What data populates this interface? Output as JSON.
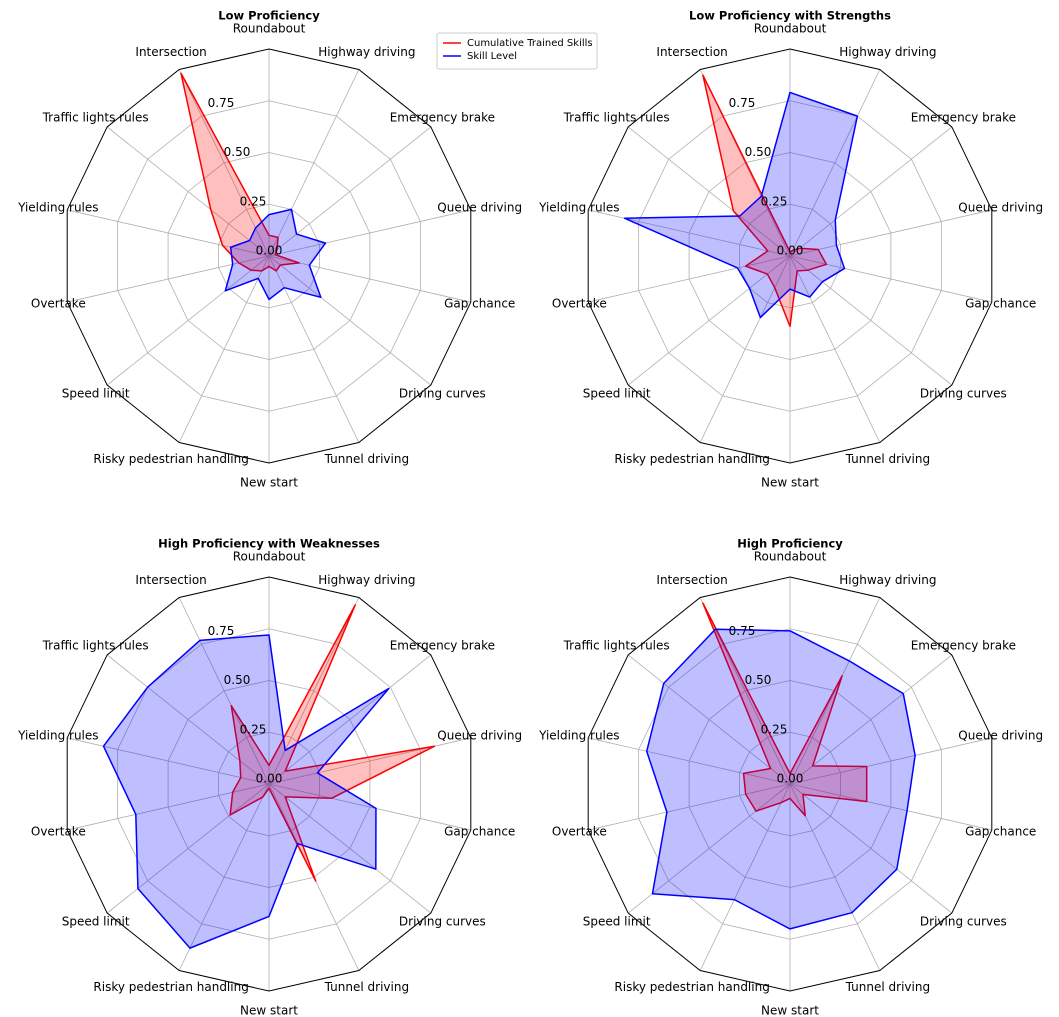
{
  "chart_data": [
    {
      "type": "radar",
      "title": "Low Proficiency",
      "legend": "upper right",
      "grid": true,
      "categories": [
        "Roundabout",
        "Highway driving",
        "Emergency brake",
        "Queue driving",
        "Gap chance",
        "Driving curves",
        "Tunnel driving",
        "New start",
        "Risky pedestrian handling",
        "Speed limit",
        "Overtake",
        "Yielding rules",
        "Traffic lights rules",
        "Intersection"
      ],
      "series": [
        {
          "name": "Cumulative Trained Skills",
          "color": "#ff0000",
          "values": [
            0.1,
            0.1,
            0.05,
            0.03,
            0.15,
            0.07,
            0.08,
            0.05,
            0.08,
            0.11,
            0.15,
            0.23,
            0.36,
            0.98
          ]
        },
        {
          "name": "Skill Level",
          "color": "#0000ff",
          "values": [
            0.2,
            0.25,
            0.17,
            0.28,
            0.2,
            0.32,
            0.17,
            0.21,
            0.12,
            0.27,
            0.18,
            0.19,
            0.12,
            0.15
          ]
        }
      ],
      "ylim": [
        0,
        1
      ],
      "yticks": [
        {
          "value": 0,
          "label": "0.00"
        },
        {
          "value": 0.25,
          "label": "0.25"
        },
        {
          "value": 0.5,
          "label": "0.50"
        },
        {
          "value": 0.75,
          "label": "0.75"
        }
      ]
    },
    {
      "type": "radar",
      "title": "Low Proficiency with Strengths",
      "grid": true,
      "categories": [
        "Roundabout",
        "Highway driving",
        "Emergency brake",
        "Queue driving",
        "Gap chance",
        "Driving curves",
        "Tunnel driving",
        "New start",
        "Risky pedestrian handling",
        "Speed limit",
        "Overtake",
        "Yielding rules",
        "Traffic lights rules",
        "Intersection"
      ],
      "series": [
        {
          "name": "Cumulative Trained Skills",
          "color": "#ff0000",
          "values": [
            0.02,
            0.03,
            0.06,
            0.14,
            0.18,
            0.11,
            0.08,
            0.34,
            0.17,
            0.14,
            0.22,
            0.11,
            0.35,
            0.97
          ]
        },
        {
          "name": "Skill Level",
          "color": "#0000ff",
          "values": [
            0.79,
            0.75,
            0.28,
            0.23,
            0.27,
            0.2,
            0.22,
            0.16,
            0.33,
            0.25,
            0.26,
            0.82,
            0.31,
            0.32
          ]
        }
      ],
      "ylim": [
        0,
        1
      ],
      "yticks": [
        {
          "value": 0,
          "label": "0.00"
        },
        {
          "value": 0.25,
          "label": "0.25"
        },
        {
          "value": 0.5,
          "label": "0.50"
        },
        {
          "value": 0.75,
          "label": "0.75"
        }
      ]
    },
    {
      "type": "radar",
      "title": "High Proficiency with Weaknesses",
      "grid": true,
      "categories": [
        "Roundabout",
        "Highway driving",
        "Emergency brake",
        "Queue driving",
        "Gap chance",
        "Driving curves",
        "Tunnel driving",
        "New start",
        "Risky pedestrian handling",
        "Speed limit",
        "Overtake",
        "Yielding rules",
        "Traffic lights rules",
        "Intersection"
      ],
      "series": [
        {
          "name": "Cumulative Trained Skills",
          "color": "#ff0000",
          "values": [
            0.09,
            0.96,
            0.1,
            0.82,
            0.31,
            0.1,
            0.52,
            0.02,
            0.07,
            0.24,
            0.18,
            0.14,
            0.18,
            0.42
          ]
        },
        {
          "name": "Skill Level",
          "color": "#0000ff",
          "values": [
            0.72,
            0.18,
            0.74,
            0.24,
            0.53,
            0.66,
            0.32,
            0.64,
            0.88,
            0.81,
            0.66,
            0.82,
            0.75,
            0.77
          ]
        }
      ],
      "ylim": [
        0,
        1
      ],
      "yticks": [
        {
          "value": 0,
          "label": "0.00"
        },
        {
          "value": 0.25,
          "label": "0.25"
        },
        {
          "value": 0.5,
          "label": "0.50"
        },
        {
          "value": 0.75,
          "label": "0.75"
        }
      ]
    },
    {
      "type": "radar",
      "title": "High Proficiency",
      "grid": true,
      "categories": [
        "Roundabout",
        "Highway driving",
        "Emergency brake",
        "Queue driving",
        "Gap chance",
        "Driving curves",
        "Tunnel driving",
        "New start",
        "Risky pedestrian handling",
        "Speed limit",
        "Overtake",
        "Yielding rules",
        "Traffic lights rules",
        "Intersection"
      ],
      "series": [
        {
          "name": "Cumulative Trained Skills",
          "color": "#ff0000",
          "values": [
            0.05,
            0.58,
            0.14,
            0.38,
            0.38,
            0.08,
            0.17,
            0.07,
            0.1,
            0.21,
            0.22,
            0.23,
            0.12,
            0.97
          ]
        },
        {
          "name": "Skill Level",
          "color": "#0000ff",
          "values": [
            0.74,
            0.66,
            0.7,
            0.62,
            0.58,
            0.66,
            0.69,
            0.7,
            0.62,
            0.85,
            0.61,
            0.71,
            0.78,
            0.83
          ]
        }
      ],
      "ylim": [
        0,
        1
      ],
      "yticks": [
        {
          "value": 0,
          "label": "0.00"
        },
        {
          "value": 0.25,
          "label": "0.25"
        },
        {
          "value": 0.5,
          "label": "0.50"
        },
        {
          "value": 0.75,
          "label": "0.75"
        }
      ]
    }
  ]
}
